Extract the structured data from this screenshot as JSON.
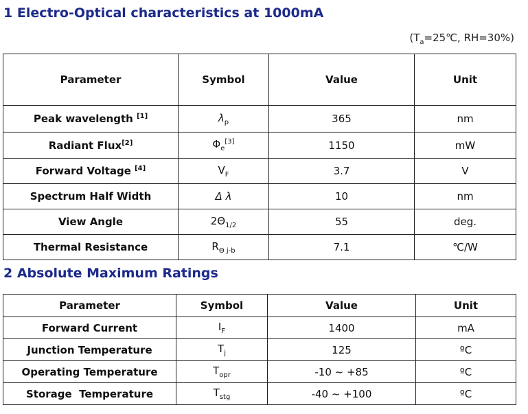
{
  "section1": {
    "title": "1 Electro-Optical characteristics at 1000mA",
    "conditions": {
      "open": "(T",
      "ta_sub": "a",
      "rest": "=25℃, RH=30%)"
    },
    "headers": [
      "Parameter",
      "Symbol",
      "Value",
      "Unit"
    ],
    "rows": [
      {
        "parameter": "Peak wavelength ",
        "param_note": "[1]",
        "symbol": "λ",
        "symbol_sub": "p",
        "symbol_sup": "",
        "value": "365",
        "unit": "nm"
      },
      {
        "parameter": "Radiant Flux",
        "param_note": "[2]",
        "symbol": "Φ",
        "symbol_sub": "e",
        "symbol_sup": "[3]",
        "value": "1150",
        "unit": "mW"
      },
      {
        "parameter": "Forward Voltage ",
        "param_note": "[4]",
        "symbol": "V",
        "symbol_sub": "F",
        "symbol_sup": "",
        "value": "3.7",
        "unit": "V"
      },
      {
        "parameter": "Spectrum Half Width",
        "param_note": "",
        "symbol": "Δ λ",
        "symbol_sub": "",
        "symbol_sup": "",
        "value": "10",
        "unit": "nm"
      },
      {
        "parameter": "View Angle",
        "param_note": "",
        "symbol": "2Θ",
        "symbol_sub": "1/2",
        "symbol_sup": "",
        "value": "55",
        "unit": "deg."
      },
      {
        "parameter": "Thermal Resistance",
        "param_note": "",
        "symbol": "R",
        "symbol_sub": "Θ j-b",
        "symbol_sup": "",
        "value": "7.1",
        "unit": "℃/W"
      }
    ]
  },
  "section2": {
    "title": "2  Absolute Maximum Ratings",
    "headers": [
      "Parameter",
      "Symbol",
      "Value",
      "Unit"
    ],
    "rows": [
      {
        "parameter": "Forward Current",
        "symbol": "I",
        "symbol_sub": "F",
        "value": "1400",
        "unit": "mA"
      },
      {
        "parameter": "Junction Temperature",
        "symbol": "T",
        "symbol_sub": "j",
        "value": "125",
        "unit": "ºC"
      },
      {
        "parameter": "Operating Temperature",
        "symbol": "T",
        "symbol_sub": "opr",
        "value": "-10 ~ +85",
        "unit": "ºC"
      },
      {
        "parameter": "Storage  Temperature",
        "symbol": "T",
        "symbol_sub": "stg",
        "value": "-40 ~ +100",
        "unit": "ºC"
      }
    ]
  }
}
